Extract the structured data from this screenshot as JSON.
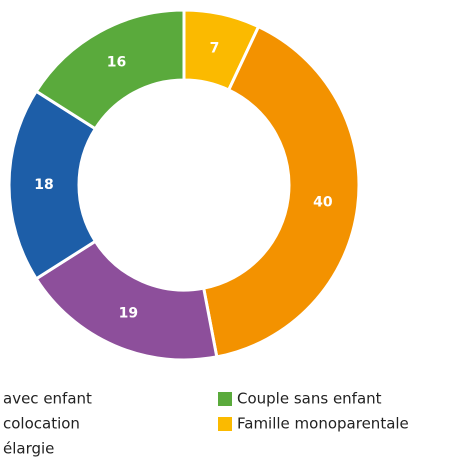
{
  "chart_data": {
    "type": "donut",
    "categories": [
      "Famille monoparentale",
      "avec enfant",
      "colocation",
      "élargie",
      "Couple sans enfant"
    ],
    "values": [
      7,
      40,
      19,
      18,
      16
    ],
    "colors": [
      "#fbba00",
      "#f39200",
      "#8d4f9b",
      "#1d5ea8",
      "#5aaa3c"
    ]
  }
}
